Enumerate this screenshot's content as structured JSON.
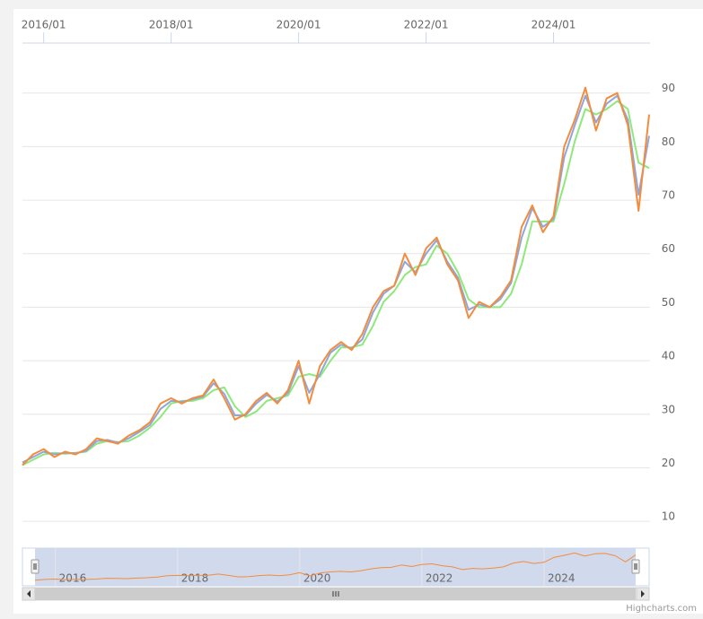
{
  "chart_data": {
    "type": "line",
    "x": [
      "2015/09",
      "2015/11",
      "2016/01",
      "2016/03",
      "2016/05",
      "2016/07",
      "2016/09",
      "2016/11",
      "2017/01",
      "2017/03",
      "2017/05",
      "2017/07",
      "2017/09",
      "2017/11",
      "2018/01",
      "2018/03",
      "2018/05",
      "2018/07",
      "2018/09",
      "2018/11",
      "2019/01",
      "2019/03",
      "2019/05",
      "2019/07",
      "2019/09",
      "2019/11",
      "2020/01",
      "2020/03",
      "2020/05",
      "2020/07",
      "2020/09",
      "2020/11",
      "2021/01",
      "2021/03",
      "2021/05",
      "2021/07",
      "2021/09",
      "2021/11",
      "2022/01",
      "2022/03",
      "2022/05",
      "2022/07",
      "2022/09",
      "2022/11",
      "2023/01",
      "2023/03",
      "2023/05",
      "2023/07",
      "2023/09",
      "2023/11",
      "2024/01",
      "2024/03",
      "2024/05",
      "2024/07",
      "2024/09",
      "2024/11",
      "2025/01",
      "2025/03",
      "2025/05",
      "2025/07"
    ],
    "series": [
      {
        "color": "#f28c3e",
        "values": [
          20.5,
          22.5,
          23.5,
          22,
          23,
          22.5,
          23.5,
          25.5,
          25,
          24.5,
          26,
          27,
          28.5,
          32,
          33,
          32,
          33,
          33.5,
          36.5,
          33,
          29,
          30,
          32.5,
          34,
          32,
          34.5,
          40,
          32,
          39,
          42,
          43.5,
          42,
          45,
          50,
          53,
          54,
          60,
          56,
          61,
          63,
          58,
          55,
          48,
          51,
          50,
          52,
          55,
          65,
          69,
          64,
          67,
          80,
          85,
          91,
          83,
          89,
          90,
          84,
          68,
          86
        ]
      },
      {
        "color": "#8fa6dd",
        "values": [
          21,
          22,
          23,
          22.5,
          22.8,
          22.7,
          23.2,
          25,
          25.2,
          24.7,
          25.5,
          26.7,
          28,
          31,
          32.5,
          32.3,
          32.8,
          33.3,
          35.8,
          33.8,
          29.8,
          29.8,
          32,
          33.6,
          32.4,
          34,
          39,
          34,
          37.5,
          41.5,
          43,
          42.3,
          44,
          49,
          52.5,
          54,
          58.5,
          56.5,
          60,
          62.5,
          58.5,
          55.5,
          49.5,
          50.5,
          50,
          51.5,
          54.5,
          63,
          68.5,
          65,
          66.5,
          78,
          84,
          89.5,
          84.5,
          88,
          89.5,
          85,
          71,
          82
        ]
      },
      {
        "color": "#8fe87a",
        "values": [
          20.5,
          21.5,
          22.5,
          22.8,
          22.6,
          22.8,
          23,
          24.5,
          25,
          24.8,
          25,
          26,
          27.5,
          29.5,
          32,
          32.5,
          32.5,
          33,
          34.5,
          35,
          31.5,
          29.5,
          30.5,
          32.5,
          33,
          33.5,
          37,
          37.5,
          37,
          40,
          42.5,
          42.5,
          43,
          46.5,
          51,
          53,
          56,
          57.5,
          58,
          61.5,
          60,
          56.5,
          51.5,
          50,
          50,
          50,
          52.5,
          58,
          66,
          66,
          66,
          73,
          81,
          87,
          86,
          87,
          88.5,
          87,
          77,
          76
        ]
      }
    ],
    "xlim": [
      "2015/09",
      "2025/07"
    ],
    "xticks": [
      "2016/01",
      "2018/01",
      "2020/01",
      "2022/01",
      "2024/01"
    ],
    "ylim": [
      6,
      99
    ],
    "yticks": [
      10,
      20,
      30,
      40,
      50,
      60,
      70,
      80,
      90
    ],
    "grid": true,
    "navigator": {
      "xticks": [
        "2016",
        "2018",
        "2020",
        "2022",
        "2024"
      ]
    },
    "credits": "Highcharts.com"
  }
}
